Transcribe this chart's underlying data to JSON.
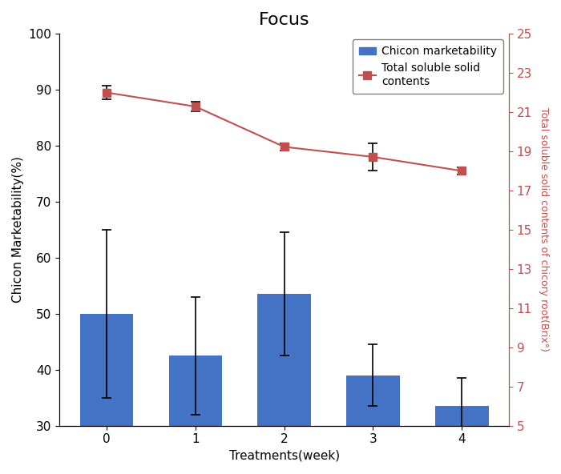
{
  "title": "Focus",
  "xlabel": "Treatments(week)",
  "ylabel_left": "Chicon Marketability(%)",
  "ylabel_right": "Total soluble solid contents of chicory root(Brix°)",
  "x": [
    0,
    1,
    2,
    3,
    4
  ],
  "bar_values": [
    50,
    42.5,
    53.5,
    39,
    33.5
  ],
  "bar_errors": [
    15,
    10.5,
    11,
    5.5,
    5
  ],
  "bar_color": "#4472C4",
  "line_values_left": [
    89.5,
    87,
    79.8,
    78,
    75.5
  ],
  "line_errors_left": [
    1.2,
    0.8,
    0.6,
    2.5,
    0.6
  ],
  "line_color": "#C0504D",
  "line_marker": "s",
  "ylim_left": [
    30,
    100
  ],
  "ylim_right": [
    5,
    25
  ],
  "yticks_left": [
    30,
    40,
    50,
    60,
    70,
    80,
    90,
    100
  ],
  "yticks_right": [
    5,
    7,
    9,
    11,
    13,
    15,
    17,
    19,
    21,
    23,
    25
  ],
  "legend_bar_label": "Chicon marketability",
  "legend_line_label": "Total soluble solid\ncontents",
  "background_color": "#ffffff",
  "title_fontsize": 16,
  "axis_label_fontsize": 11,
  "tick_fontsize": 11
}
